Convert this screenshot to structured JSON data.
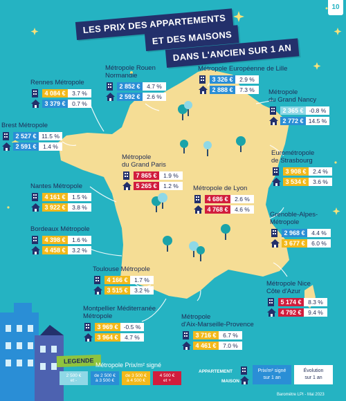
{
  "page_number": "10",
  "title": {
    "line1": "LES PRIX DES APPARTEMENTS",
    "line2": "ET DES MAISONS",
    "line3": "DANS L'ANCIEN SUR 1 AN"
  },
  "regions": [
    {
      "name": "Rennes Métropole",
      "apt_price": "4 084 €",
      "apt_class": "c3",
      "apt_evo": "3.7 %",
      "house_price": "3 379 €",
      "house_class": "c2",
      "house_evo": "0.7 %"
    },
    {
      "name": "Métropole Rouen\nNormandie",
      "apt_price": "2 852 €",
      "apt_class": "c2",
      "apt_evo": "4.7 %",
      "house_price": "2 592 €",
      "house_class": "c2",
      "house_evo": "2.6 %"
    },
    {
      "name": "Métropole Européenne de Lille",
      "apt_price": "3 326 €",
      "apt_class": "c2",
      "apt_evo": "2.9 %",
      "house_price": "2 888 €",
      "house_class": "c2",
      "house_evo": "7.3 %"
    },
    {
      "name": "Métropole\ndu Grand Nancy",
      "apt_price": "2 365 €",
      "apt_class": "c1",
      "apt_evo": "-0.8 %",
      "house_price": "2 772 €",
      "house_class": "c2",
      "house_evo": "14.5 %"
    },
    {
      "name": "Brest Métropole",
      "apt_price": "2 527 €",
      "apt_class": "c2",
      "apt_evo": "11.5 %",
      "house_price": "2 591 €",
      "house_class": "c2",
      "house_evo": "1.4 %"
    },
    {
      "name": "Métropole\ndu Grand Paris",
      "apt_price": "7 865 €",
      "apt_class": "c4",
      "apt_evo": "1.9 %",
      "house_price": "5 265 €",
      "house_class": "c4",
      "house_evo": "1.2 %"
    },
    {
      "name": "Eurométropole\nde Strasbourg",
      "apt_price": "3 908 €",
      "apt_class": "c3",
      "apt_evo": "2.4 %",
      "house_price": "3 534 €",
      "house_class": "c3",
      "house_evo": "3.6 %"
    },
    {
      "name": "Nantes Métropole",
      "apt_price": "4 161 €",
      "apt_class": "c3",
      "apt_evo": "1.5 %",
      "house_price": "3 922 €",
      "house_class": "c3",
      "house_evo": "3.8 %"
    },
    {
      "name": "Métropole de Lyon",
      "apt_price": "4 686 €",
      "apt_class": "c4",
      "apt_evo": "2.6 %",
      "house_price": "4 768 €",
      "house_class": "c4",
      "house_evo": "4.6 %"
    },
    {
      "name": "Bordeaux Métropole",
      "apt_price": "4 398 €",
      "apt_class": "c3",
      "apt_evo": "1.6 %",
      "house_price": "4 458 €",
      "house_class": "c3",
      "house_evo": "3.2 %"
    },
    {
      "name": "Grenoble-Alpes-\nMétropole",
      "apt_price": "2 968 €",
      "apt_class": "c2",
      "apt_evo": "4.4 %",
      "house_price": "3 677 €",
      "house_class": "c3",
      "house_evo": "6.0 %"
    },
    {
      "name": "Toulouse Métropole",
      "apt_price": "4 166 €",
      "apt_class": "c3",
      "apt_evo": "1.7 %",
      "house_price": "3 515 €",
      "house_class": "c3",
      "house_evo": "3.2 %"
    },
    {
      "name": "Métropole Nice\nCôte d'Azur",
      "apt_price": "5 174 €",
      "apt_class": "c4",
      "apt_evo": "8.3 %",
      "house_price": "4 792 €",
      "house_class": "c4",
      "house_evo": "9.4 %"
    },
    {
      "name": "Montpellier Méditerranée\nMétropole",
      "apt_price": "3 969 €",
      "apt_class": "c3",
      "apt_evo": "-0.5 %",
      "house_price": "3 964 €",
      "house_class": "c3",
      "house_evo": "4.7 %"
    },
    {
      "name": "Métropole\nd'Aix-Marseille-Provence",
      "apt_price": "3 716 €",
      "apt_class": "c3",
      "apt_evo": "6.7 %",
      "house_price": "4 461 €",
      "house_class": "c3",
      "house_evo": "7.0 %"
    }
  ],
  "legend": {
    "tag": "LEGENDE",
    "title": "Métropole Prix/m² signé",
    "swatch1": "2 500 €\net -",
    "swatch2": "de 2 500 €\nà 3 500 €",
    "swatch3": "de 3 500 €\nà 4 500 €",
    "swatch4": "4 500 €\net +",
    "appartement": "APPARTEMENT",
    "maison": "MAISON",
    "prix_box": "Prix/m² signé\nsur 1 an",
    "evo_box": "Évolution\nsur 1 an"
  },
  "colors": {
    "background": "#25b3c2",
    "map_land": "#f5dd95",
    "navy": "#23306b",
    "up_to_2500": "#8fd8e6",
    "2500_to_3500": "#2a8ed6",
    "3500_to_4500": "#f3b91b",
    "over_4500": "#d11d3d"
  },
  "source": "Baromètre LPI - Mai 2023"
}
